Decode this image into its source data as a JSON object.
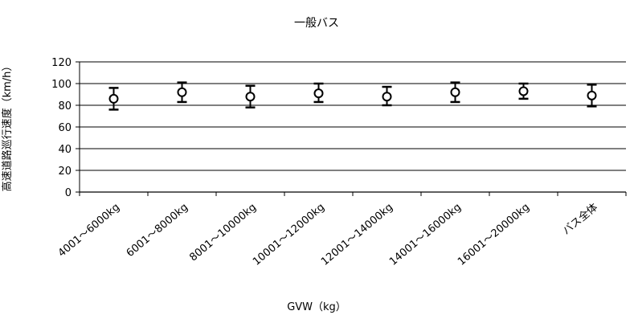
{
  "chart_data": {
    "type": "scatter",
    "title": "一般バス",
    "xlabel": "GVW（kg）",
    "ylabel": "高速道路巡行速度（km/h）",
    "ylim": [
      0,
      120
    ],
    "yticks": [
      0,
      20,
      40,
      60,
      80,
      100,
      120
    ],
    "grid": true,
    "categories": [
      "4001～6000kg",
      "6001～8000kg",
      "8001～10000kg",
      "10001～12000kg",
      "12001～14000kg",
      "14001～16000kg",
      "16001～20000kg",
      "バス全体"
    ],
    "series": [
      {
        "values": [
          86,
          92,
          88,
          91,
          88,
          92,
          93,
          89
        ],
        "error_low": [
          76,
          83,
          78,
          83,
          80,
          83,
          86,
          79
        ],
        "error_high": [
          96,
          101,
          98,
          100,
          97,
          101,
          100,
          99
        ]
      }
    ],
    "marker": "open-circle",
    "colors": {
      "line": "#000000",
      "marker_fill": "#ffffff",
      "grid": "#000000"
    }
  }
}
